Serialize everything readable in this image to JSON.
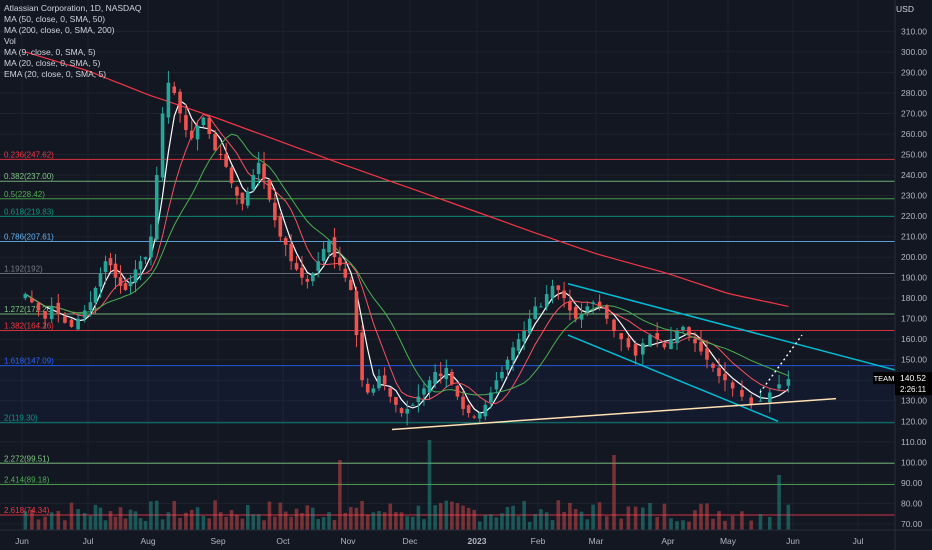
{
  "legend": {
    "symbol": "Atlassian Corporation, 1D, NASDAQ",
    "indicators": [
      "MA (50, close, 0, SMA, 50)",
      "MA (200, close, 0, SMA, 200)",
      "Vol",
      "MA (9, close, 0, SMA, 5)",
      "MA (20, close, 0, SMA, 5)",
      "EMA (20, close, 0, SMA, 5)"
    ]
  },
  "price_axis": {
    "currency": "USD",
    "ticks": [
      "310.00",
      "300.00",
      "290.00",
      "280.00",
      "270.00",
      "260.00",
      "250.00",
      "240.00",
      "230.00",
      "220.00",
      "210.00",
      "200.00",
      "190.00",
      "180.00",
      "170.00",
      "160.00",
      "150.00",
      "140.00",
      "130.00",
      "120.00",
      "110.00",
      "100.00",
      "90.00",
      "80.00",
      "70.00"
    ],
    "ticker_badge": "TEAM",
    "price_badge": "140.52",
    "countdown_badge": "2:26:11",
    "ticker_color": "#26a69a"
  },
  "time_axis": {
    "labels": [
      "Jun",
      "Jul",
      "Aug",
      "Sep",
      "Oct",
      "Nov",
      "Dec",
      "2023",
      "Feb",
      "Mar",
      "Apr",
      "May",
      "Jun",
      "Jul"
    ]
  },
  "fib_levels": [
    {
      "label": "0.236(247.62)",
      "price": 247.62,
      "color": "#f23645"
    },
    {
      "label": "0.382(237.00)",
      "price": 237.0,
      "color": "#81c784"
    },
    {
      "label": "0.5(228.42)",
      "price": 228.42,
      "color": "#4caf50"
    },
    {
      "label": "0.618(219.83)",
      "price": 219.83,
      "color": "#089981"
    },
    {
      "label": "0.786(207.61)",
      "price": 207.61,
      "color": "#64b5f6"
    },
    {
      "label": "1.192(192)",
      "price": 192,
      "color": "#787b86"
    },
    {
      "label": "1.272(172.26)",
      "price": 172.26,
      "color": "#81c784"
    },
    {
      "label": "1.382(164.26)",
      "price": 164.26,
      "color": "#f23645"
    },
    {
      "label": "1.618(147.09)",
      "price": 147.09,
      "color": "#2962ff"
    },
    {
      "label": "2(119.30)",
      "price": 119.3,
      "color": "#089981"
    },
    {
      "label": "2.272(99.51)",
      "price": 99.51,
      "color": "#81c784"
    },
    {
      "label": "2.414(89.18)",
      "price": 89.18,
      "color": "#4caf50"
    },
    {
      "label": "2.618(74.34)",
      "price": 74.34,
      "color": "#f23645"
    }
  ],
  "colors": {
    "up": "#26a69a",
    "down": "#ef5350",
    "ma50": "#4caf50",
    "ma200": "#f23645",
    "ma9": "#ffffff",
    "channel": "#00bcd4",
    "support": "#ffe0b2",
    "forecast": "#ffffff"
  },
  "chart_data": {
    "type": "candlestick",
    "title": "Atlassian Corporation, 1D, NASDAQ",
    "ylabel": "USD",
    "ylim": [
      67,
      318
    ],
    "x_months": [
      "Jun",
      "Jul",
      "Aug",
      "Sep",
      "Oct",
      "Nov",
      "Dec",
      "2023",
      "Feb",
      "Mar",
      "Apr",
      "May",
      "Jun",
      "Jul"
    ],
    "close_series": [
      {
        "month": "Jun",
        "values": [
          182,
          178,
          174,
          170,
          176,
          172,
          168,
          166,
          170,
          174
        ]
      },
      {
        "month": "Jul",
        "values": [
          178,
          185,
          192,
          198,
          196,
          190,
          186,
          184,
          188,
          194,
          198,
          200
        ]
      },
      {
        "month": "Aug",
        "values": [
          210,
          240,
          270,
          285,
          280,
          270,
          262,
          258,
          264,
          268,
          260,
          252
        ]
      },
      {
        "month": "Sep",
        "values": [
          250,
          244,
          236,
          230,
          226,
          232,
          240,
          246,
          238,
          228,
          218,
          210
        ]
      },
      {
        "month": "Oct",
        "values": [
          206,
          198,
          194,
          190,
          188,
          192,
          198,
          204,
          208,
          200,
          196,
          190
        ]
      },
      {
        "month": "Nov",
        "values": [
          184,
          162,
          140,
          134,
          136,
          142,
          138,
          132,
          128,
          124,
          126
        ]
      },
      {
        "month": "Dec",
        "values": [
          128,
          132,
          136,
          140,
          144,
          142,
          146,
          138,
          132,
          126,
          124,
          122
        ]
      },
      {
        "month": "2023",
        "values": [
          124,
          128,
          134,
          140,
          144,
          150,
          156,
          160,
          164,
          170,
          176
        ]
      },
      {
        "month": "Feb",
        "values": [
          176,
          182,
          186,
          184,
          180,
          174,
          170,
          172,
          176,
          178
        ]
      },
      {
        "month": "Mar",
        "values": [
          176,
          170,
          164,
          160,
          156,
          152,
          158,
          162,
          160,
          156
        ]
      },
      {
        "month": "Apr",
        "values": [
          160,
          164,
          166,
          162,
          158,
          154,
          150,
          146,
          142,
          140
        ]
      },
      {
        "month": "May",
        "values": [
          136,
          132,
          128,
          130,
          134,
          138,
          140.52
        ]
      }
    ],
    "channel": {
      "upper": [
        [
          185,
          "Feb"
        ],
        [
          146,
          "Jun"
        ]
      ],
      "lower": [
        [
          160,
          "Feb"
        ],
        [
          120,
          "May"
        ]
      ]
    },
    "support_line": {
      "from": [
        115,
        "Nov"
      ],
      "to": [
        131,
        "Jun"
      ]
    },
    "last_price": 140.52
  }
}
